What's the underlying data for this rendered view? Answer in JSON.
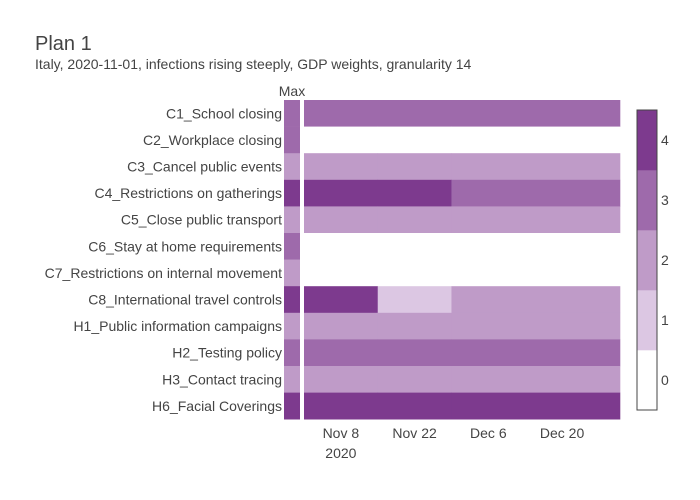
{
  "title": "Plan 1",
  "subtitle": "Italy, 2020-11-01, infections rising steeply, GDP weights, granularity 14",
  "max_label": "Max",
  "colors": {
    "0": "#ffffff",
    "1": "#dcc7e3",
    "2": "#bf9bc8",
    "3": "#9e6aab",
    "4": "#7d3a8e"
  },
  "chart_data": {
    "type": "heatmap",
    "title": "Plan 1",
    "subtitle": "Italy, 2020-11-01, infections rising steeply, GDP weights, granularity 14",
    "x_start": "2020-11-01",
    "x_end": "2020-12-31",
    "segment_boundaries": [
      "2020-11-01",
      "2020-11-15",
      "2020-11-29",
      "2020-12-31"
    ],
    "x_ticks": [
      "Nov 8",
      "Nov 22",
      "Dec 6",
      "Dec 20"
    ],
    "x_tick_dates": [
      "2020-11-08",
      "2020-11-22",
      "2020-12-06",
      "2020-12-20"
    ],
    "x_year_label": "2020",
    "colorbar": {
      "min": 0,
      "max": 4,
      "ticks": [
        0,
        1,
        2,
        3,
        4
      ]
    },
    "rows": [
      {
        "label": "C1_School closing",
        "max": 3,
        "values": [
          3,
          3,
          3
        ]
      },
      {
        "label": "C2_Workplace closing",
        "max": 3,
        "values": [
          0,
          0,
          0
        ]
      },
      {
        "label": "C3_Cancel public events",
        "max": 2,
        "values": [
          2,
          2,
          2
        ]
      },
      {
        "label": "C4_Restrictions on gatherings",
        "max": 4,
        "values": [
          4,
          4,
          3
        ]
      },
      {
        "label": "C5_Close public transport",
        "max": 2,
        "values": [
          2,
          2,
          2
        ]
      },
      {
        "label": "C6_Stay at home requirements",
        "max": 3,
        "values": [
          0,
          0,
          0
        ]
      },
      {
        "label": "C7_Restrictions on internal movement",
        "max": 2,
        "values": [
          0,
          0,
          0
        ]
      },
      {
        "label": "C8_International travel controls",
        "max": 4,
        "values": [
          4,
          1,
          2
        ]
      },
      {
        "label": "H1_Public information campaigns",
        "max": 2,
        "values": [
          2,
          2,
          2
        ]
      },
      {
        "label": "H2_Testing policy",
        "max": 3,
        "values": [
          3,
          3,
          3
        ]
      },
      {
        "label": "H3_Contact tracing",
        "max": 2,
        "values": [
          2,
          2,
          2
        ]
      },
      {
        "label": "H6_Facial Coverings",
        "max": 4,
        "values": [
          4,
          4,
          4
        ]
      }
    ]
  }
}
